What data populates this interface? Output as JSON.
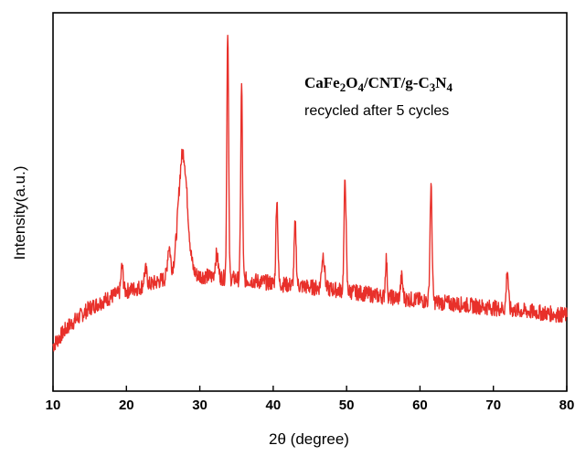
{
  "chart_data": {
    "type": "line",
    "xlabel": "2θ (degree)",
    "ylabel": "Intensity(a.u.)",
    "xlim": [
      10,
      80
    ],
    "ylim": [
      0,
      100
    ],
    "x_ticks": [
      "10",
      "20",
      "30",
      "40",
      "50",
      "60",
      "70",
      "80"
    ],
    "y_ticks_visible": false,
    "grid": false,
    "line_color": "#e8302a",
    "annotation": {
      "formula_parts": [
        {
          "text": "CaFe",
          "sub": false
        },
        {
          "text": "2",
          "sub": true
        },
        {
          "text": "O",
          "sub": false
        },
        {
          "text": "4",
          "sub": true
        },
        {
          "text": "/CNT/g-C",
          "sub": false
        },
        {
          "text": "3",
          "sub": true
        },
        {
          "text": "N",
          "sub": false
        },
        {
          "text": "4",
          "sub": true
        }
      ],
      "subtitle": "recycled after 5 cycles"
    },
    "baseline": [
      [
        10,
        12
      ],
      [
        12,
        17
      ],
      [
        15,
        22
      ],
      [
        18,
        25
      ],
      [
        20,
        26.5
      ],
      [
        23,
        28
      ],
      [
        25,
        29.5
      ],
      [
        27,
        31
      ],
      [
        30,
        30.5
      ],
      [
        33,
        30
      ],
      [
        36,
        29.5
      ],
      [
        40,
        28.5
      ],
      [
        45,
        27.5
      ],
      [
        50,
        26.5
      ],
      [
        55,
        25
      ],
      [
        60,
        24
      ],
      [
        65,
        23
      ],
      [
        70,
        22
      ],
      [
        75,
        21
      ],
      [
        80,
        20
      ]
    ],
    "peaks": [
      {
        "x": 19.4,
        "y": 33,
        "width": 0.15
      },
      {
        "x": 22.6,
        "y": 32,
        "width": 0.2
      },
      {
        "x": 25.8,
        "y": 38,
        "width": 0.2
      },
      {
        "x": 27.7,
        "y": 63,
        "width": 0.6
      },
      {
        "x": 32.3,
        "y": 36,
        "width": 0.2
      },
      {
        "x": 33.8,
        "y": 96,
        "width": 0.12
      },
      {
        "x": 35.7,
        "y": 81,
        "width": 0.12
      },
      {
        "x": 40.5,
        "y": 51,
        "width": 0.13
      },
      {
        "x": 43.0,
        "y": 44,
        "width": 0.14
      },
      {
        "x": 46.8,
        "y": 36,
        "width": 0.2
      },
      {
        "x": 49.8,
        "y": 56,
        "width": 0.14
      },
      {
        "x": 55.4,
        "y": 35,
        "width": 0.12
      },
      {
        "x": 57.5,
        "y": 30,
        "width": 0.15
      },
      {
        "x": 61.5,
        "y": 54,
        "width": 0.14
      },
      {
        "x": 71.9,
        "y": 32,
        "width": 0.14
      }
    ]
  }
}
